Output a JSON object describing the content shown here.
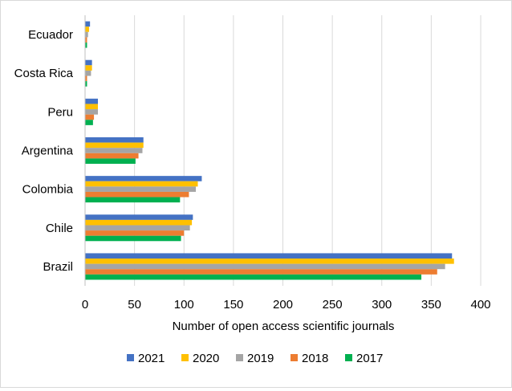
{
  "chart_data": {
    "type": "bar",
    "orientation": "horizontal",
    "title": "",
    "xlabel": "Number of open access scientific journals",
    "ylabel": "",
    "xlim": [
      0,
      400
    ],
    "xticks": [
      0,
      50,
      100,
      150,
      200,
      250,
      300,
      350,
      400
    ],
    "grid": "vertical-major",
    "legend_position": "bottom",
    "categories": [
      "Ecuador",
      "Costa Rica",
      "Peru",
      "Argentina",
      "Colombia",
      "Chile",
      "Brazil"
    ],
    "series": [
      {
        "name": "2021",
        "color": "#4472C4",
        "values": [
          5,
          7,
          13,
          59,
          118,
          109,
          371
        ]
      },
      {
        "name": "2020",
        "color": "#FFC000",
        "values": [
          4,
          7,
          13,
          59,
          114,
          108,
          373
        ]
      },
      {
        "name": "2019",
        "color": "#A5A5A5",
        "values": [
          3,
          6,
          13,
          58,
          112,
          106,
          364
        ]
      },
      {
        "name": "2018",
        "color": "#ED7D31",
        "values": [
          2,
          2,
          9,
          54,
          105,
          100,
          356
        ]
      },
      {
        "name": "2017",
        "color": "#00B050",
        "values": [
          2,
          2,
          8,
          51,
          96,
          97,
          340
        ]
      }
    ]
  }
}
